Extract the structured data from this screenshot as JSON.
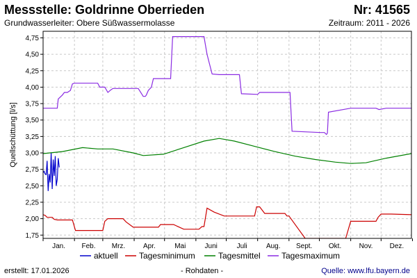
{
  "header": {
    "title": "Messstelle: Goldrinne Oberrieden",
    "id_label": "Nr: 41565",
    "aquifer_label": "Grundwasserleiter:   Obere Süßwassermolasse",
    "period_label": "Zeitraum: 2011 - 2026"
  },
  "footer": {
    "created": "erstellt:  17.01.2026",
    "raw": "- Rohdaten -",
    "source": "Quelle:  www.lfu.bayern.de"
  },
  "chart_data": {
    "type": "line",
    "title": "",
    "xlabel": "",
    "ylabel": "Quellschüttung [l/s]",
    "x_unit": "day of year",
    "xlim": [
      1,
      365
    ],
    "ylim": [
      1.7,
      4.85
    ],
    "yticks": [
      1.75,
      2.0,
      2.25,
      2.5,
      2.75,
      3.0,
      3.25,
      3.5,
      3.75,
      4.0,
      4.25,
      4.5,
      4.75
    ],
    "ytick_labels": [
      "1,75",
      "2,00",
      "2,25",
      "2,50",
      "2,75",
      "3,00",
      "3,25",
      "3,50",
      "3,75",
      "4,00",
      "4,25",
      "4,50",
      "4,75"
    ],
    "month_starts": [
      1,
      32,
      60,
      91,
      121,
      152,
      182,
      213,
      244,
      274,
      305,
      335,
      366
    ],
    "month_labels": [
      "Jan.",
      "Feb.",
      "Mrz.",
      "Apr.",
      "Mai",
      "Juni",
      "Juli",
      "Aug.",
      "Sept.",
      "Okt.",
      "Nov.",
      "Dez."
    ],
    "grid": true,
    "legend_position": "bottom",
    "series": [
      {
        "name": "aktuell",
        "color": "#0000cc",
        "x": [
          1,
          2,
          3,
          4,
          5,
          6,
          7,
          8,
          9,
          10,
          11,
          12,
          13,
          14,
          15,
          16,
          17
        ],
        "y": [
          2.7,
          2.72,
          2.68,
          2.67,
          2.88,
          2.42,
          2.68,
          2.55,
          3.0,
          2.45,
          2.9,
          2.65,
          2.95,
          2.5,
          2.6,
          2.92,
          2.78
        ]
      },
      {
        "name": "Tagesminimum",
        "color": "#cc0000",
        "x": [
          1,
          3,
          5,
          8,
          10,
          12,
          15,
          30,
          33,
          40,
          60,
          62,
          65,
          68,
          75,
          80,
          83,
          90,
          95,
          110,
          115,
          117,
          120,
          123,
          130,
          140,
          150,
          155,
          158,
          160,
          163,
          170,
          180,
          190,
          200,
          210,
          212,
          215,
          220,
          225,
          235,
          240,
          242,
          244,
          260,
          266,
          280,
          290,
          300,
          305,
          330,
          332,
          335,
          345,
          365
        ],
        "y": [
          2.06,
          2.05,
          2.02,
          2.02,
          2.02,
          1.99,
          1.98,
          1.98,
          1.82,
          1.82,
          1.82,
          1.96,
          2.0,
          2.0,
          2.0,
          2.0,
          1.95,
          1.87,
          1.87,
          1.87,
          1.87,
          1.91,
          1.91,
          1.91,
          1.91,
          1.84,
          1.84,
          1.84,
          1.88,
          1.88,
          2.16,
          2.1,
          2.04,
          2.04,
          2.04,
          2.04,
          2.18,
          2.18,
          2.08,
          2.08,
          2.08,
          2.08,
          2.04,
          2.04,
          1.7,
          1.7,
          1.7,
          1.7,
          1.7,
          1.96,
          1.96,
          2.02,
          2.07,
          2.07,
          2.06
        ]
      },
      {
        "name": "Tagesmittel",
        "color": "#008000",
        "x": [
          1,
          20,
          40,
          55,
          70,
          90,
          100,
          120,
          140,
          160,
          175,
          190,
          210,
          230,
          250,
          270,
          290,
          305,
          320,
          340,
          365
        ],
        "y": [
          2.99,
          3.02,
          3.08,
          3.06,
          3.06,
          3.0,
          2.96,
          2.98,
          3.08,
          3.18,
          3.22,
          3.18,
          3.1,
          3.02,
          2.95,
          2.9,
          2.86,
          2.84,
          2.85,
          2.92,
          2.99
        ]
      },
      {
        "name": "Tagesmaximum",
        "color": "#8a2be2",
        "x": [
          1,
          15,
          16,
          18,
          20,
          22,
          25,
          28,
          30,
          32,
          55,
          57,
          60,
          62,
          65,
          68,
          70,
          90,
          95,
          100,
          102,
          103,
          105,
          108,
          110,
          127,
          129,
          160,
          163,
          165,
          168,
          175,
          195,
          197,
          213,
          215,
          225,
          227,
          245,
          247,
          275,
          277,
          279,
          281,
          282,
          283,
          305,
          315,
          330,
          333,
          340,
          365
        ],
        "y": [
          3.68,
          3.68,
          3.82,
          3.85,
          3.88,
          3.92,
          3.92,
          3.95,
          4.05,
          4.06,
          4.06,
          4.0,
          4.0,
          4.0,
          3.92,
          3.96,
          3.98,
          3.98,
          3.98,
          3.86,
          3.86,
          3.88,
          3.95,
          4.0,
          4.13,
          4.13,
          4.77,
          4.77,
          4.5,
          4.38,
          4.2,
          4.19,
          4.19,
          3.9,
          3.89,
          3.92,
          3.92,
          3.92,
          3.92,
          3.33,
          3.31,
          3.31,
          3.31,
          3.28,
          3.3,
          3.62,
          3.68,
          3.68,
          3.68,
          3.66,
          3.68,
          3.68
        ]
      }
    ]
  }
}
